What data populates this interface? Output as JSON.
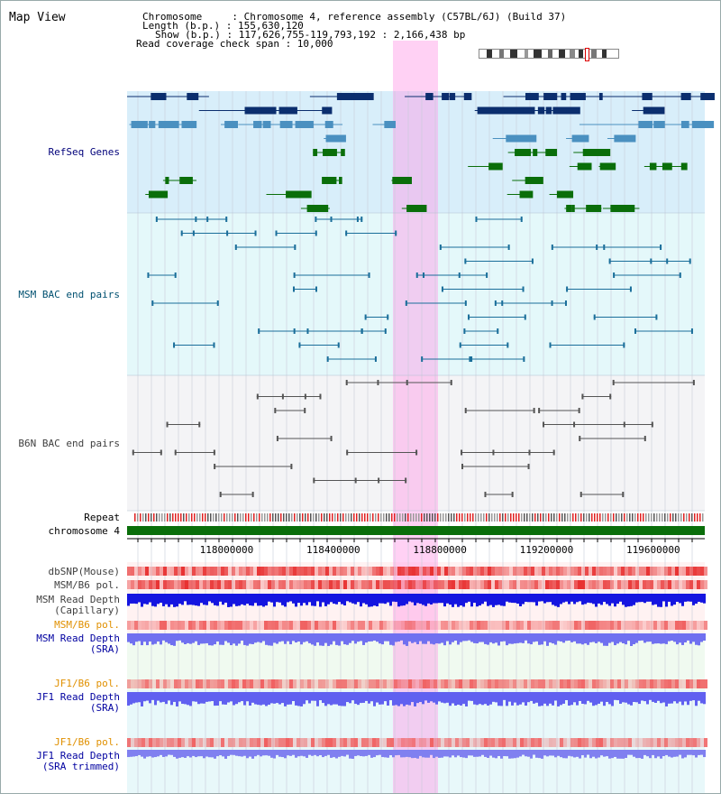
{
  "view_title": "Map View",
  "info": {
    "chromosome": "Chromosome     : Chromosome 4, reference assembly (C57BL/6J) (Build 37)",
    "length": "Length (b.p.) : 155,630,120",
    "show": "Show (b.p.) : 117,626,755-119,793,192 : 2,166,438 bp",
    "coverage": "Read coverage check span : 10,000"
  },
  "colors": {
    "refseq_dark": "#0b2e6e",
    "refseq_light": "#4a90c0",
    "refseq_green": "#0a6e0a",
    "msm_bac": "#1a6e9a",
    "b6n_bac": "#555555",
    "chromosome_bar": "#0a6e0a",
    "read_depth": "#1515e0",
    "highlight": "#ff99e6",
    "pol_label": "#e09000",
    "depth_label": "#0000a0"
  },
  "tracks": [
    {
      "id": "refseq",
      "label": "RefSeq Genes",
      "label_color": "#00007a"
    },
    {
      "id": "msm_bac",
      "label": "MSM BAC end pairs",
      "label_color": "#005070"
    },
    {
      "id": "b6n_bac",
      "label": "B6N BAC end pairs",
      "label_color": "#404040"
    },
    {
      "id": "repeat",
      "label": "Repeat",
      "label_color": "#000000"
    },
    {
      "id": "chromosome",
      "label": "chromosome 4",
      "label_color": "#000000"
    },
    {
      "id": "dbsnp",
      "label": "dbSNP(Mouse)",
      "label_color": "#404040"
    },
    {
      "id": "msm_b6_pol_cap",
      "label": "MSM/B6 pol.",
      "label_color": "#404040"
    },
    {
      "id": "msm_depth_cap",
      "label": "MSM Read Depth\n(Capillary)",
      "label_color": "#404040"
    },
    {
      "id": "msm_b6_pol_sra",
      "label": "MSM/B6 pol.",
      "label_color": "#e09000"
    },
    {
      "id": "msm_depth_sra",
      "label": "MSM Read Depth\n(SRA)",
      "label_color": "#0000a0"
    },
    {
      "id": "jf1_b6_pol",
      "label": "JF1/B6 pol.",
      "label_color": "#e09000"
    },
    {
      "id": "jf1_depth_sra",
      "label": "JF1 Read Depth\n(SRA)",
      "label_color": "#0000a0"
    },
    {
      "id": "jf1_b6_pol_trim",
      "label": "JF1/B6 pol.",
      "label_color": "#e09000"
    },
    {
      "id": "jf1_depth_trim",
      "label": "JF1 Read Depth\n(SRA trimmed)",
      "label_color": "#0000a0"
    }
  ],
  "axis": {
    "ticks": [
      "118000000",
      "118400000",
      "118800000",
      "119200000",
      "119600000"
    ],
    "tick_values": [
      118000000,
      118400000,
      118800000,
      119200000,
      119600000
    ],
    "range": [
      117626755,
      119793192
    ]
  }
}
